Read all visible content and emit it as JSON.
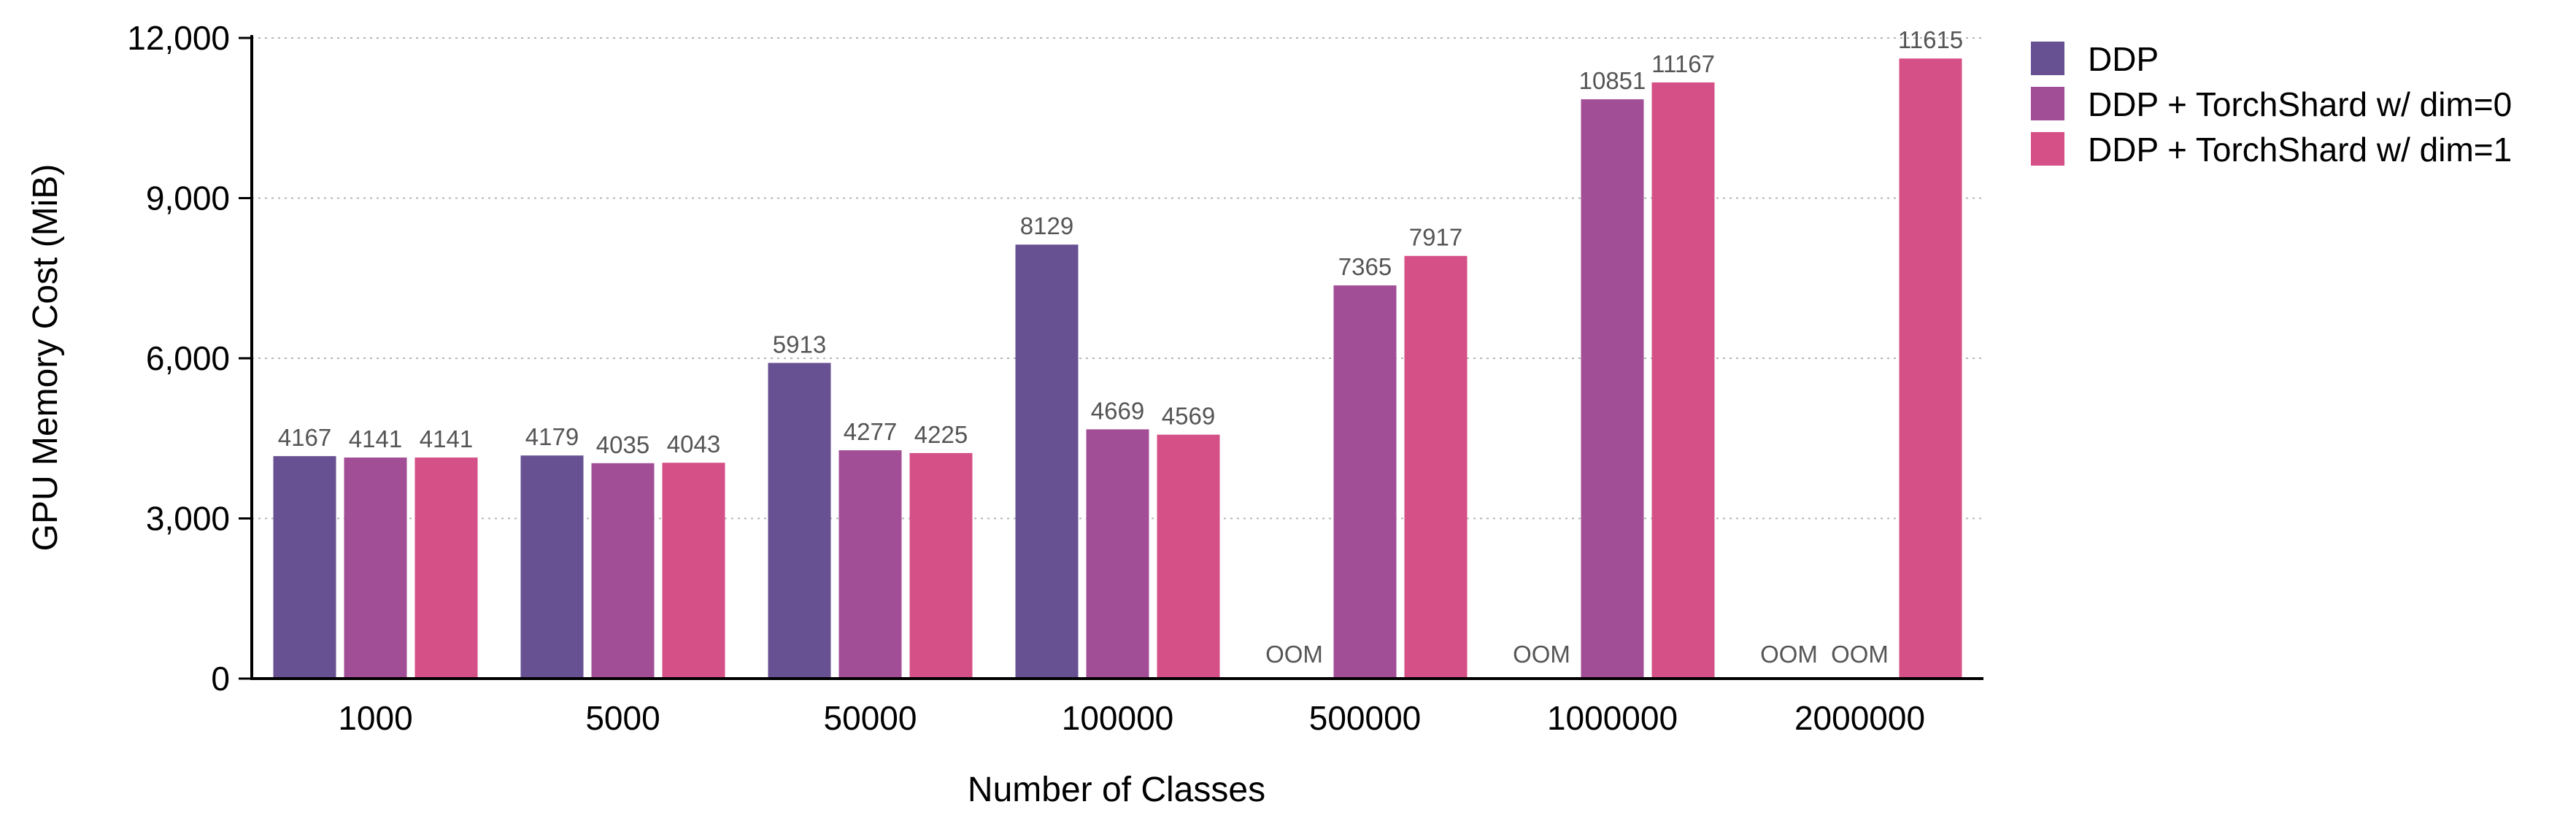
{
  "chart_data": {
    "type": "bar",
    "title": "",
    "xlabel": "Number of Classes",
    "ylabel": "GPU Memory Cost (MiB)",
    "ylim": [
      0,
      12000
    ],
    "yticks": [
      0,
      3000,
      6000,
      9000,
      12000
    ],
    "ytick_labels": [
      "0",
      "3,000",
      "6,000",
      "9,000",
      "12,000"
    ],
    "grid": "horizontal-dotted",
    "legend_position": "top-right",
    "categories": [
      "1000",
      "5000",
      "50000",
      "100000",
      "500000",
      "1000000",
      "2000000"
    ],
    "missing_label": "OOM",
    "series": [
      {
        "name": "DDP",
        "color": "#675193",
        "values": [
          4167,
          4179,
          5913,
          8129,
          null,
          null,
          null
        ]
      },
      {
        "name": "DDP + TorchShard w/ dim=0",
        "color": "#a24e96",
        "values": [
          4141,
          4035,
          4277,
          4669,
          7365,
          10851,
          null
        ]
      },
      {
        "name": "DDP + TorchShard w/ dim=1",
        "color": "#d55086",
        "values": [
          4141,
          4043,
          4225,
          4569,
          7917,
          11167,
          11615
        ]
      }
    ]
  }
}
